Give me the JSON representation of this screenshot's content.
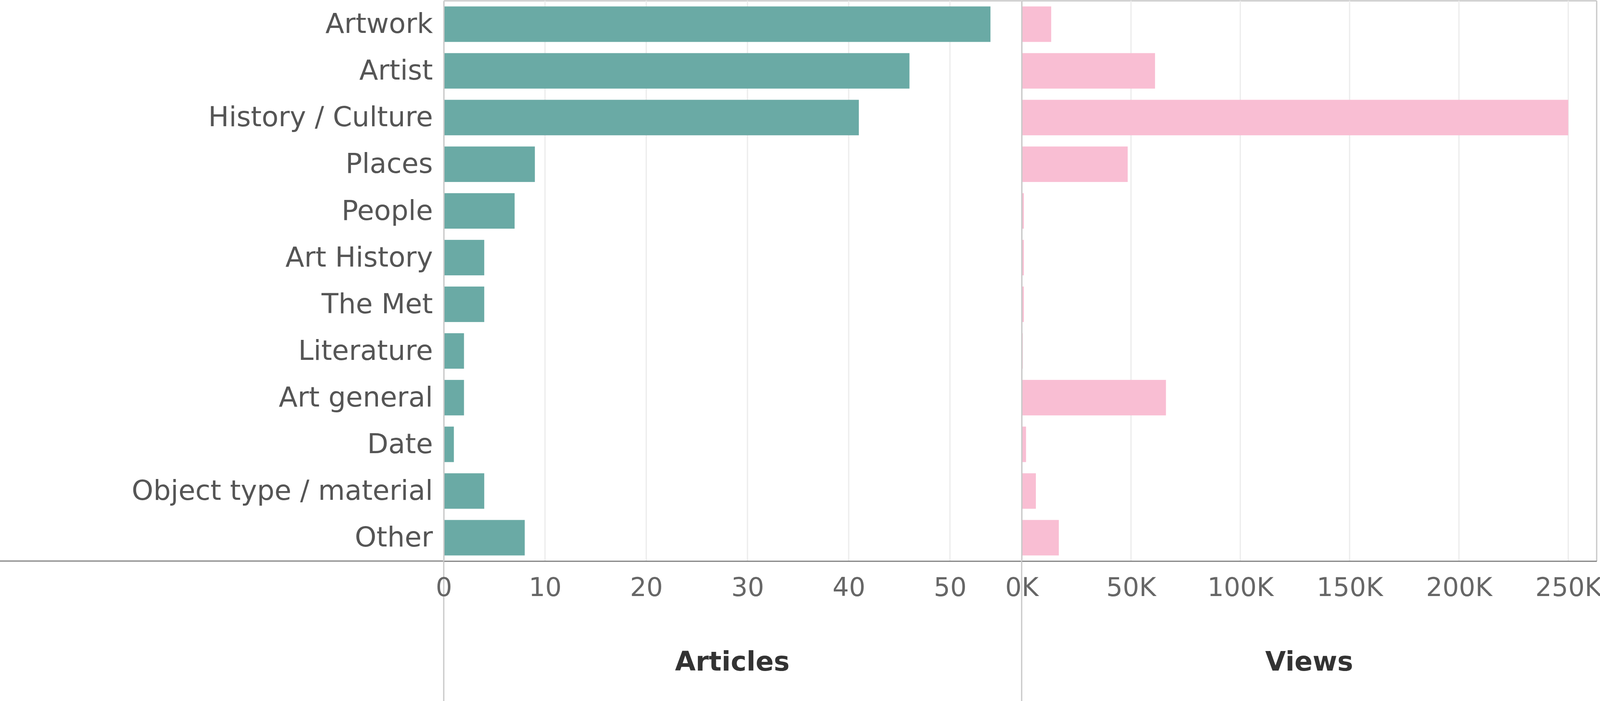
{
  "chart_data": [
    {
      "type": "bar",
      "orientation": "horizontal",
      "grid": true,
      "tick_labels": true,
      "xlabel": "Articles",
      "color": "#6aaaa5",
      "categories": [
        "Artwork",
        "Artist",
        "History / Culture",
        "Places",
        "People",
        "Art History",
        "The Met",
        "Literature",
        "Art general",
        "Date",
        "Object type / material",
        "Other"
      ],
      "values": [
        54,
        46,
        41,
        9,
        7,
        4,
        4,
        2,
        2,
        1,
        4,
        8
      ],
      "xlim": [
        0,
        57
      ],
      "xticks": [
        0,
        10,
        20,
        30,
        40,
        50
      ]
    },
    {
      "type": "bar",
      "orientation": "horizontal",
      "grid": true,
      "tick_labels": "x",
      "xlabel": "Views",
      "color": "#f9bed3",
      "categories": [
        "Artwork",
        "Artist",
        "History / Culture",
        "Places",
        "People",
        "Art History",
        "The Met",
        "Literature",
        "Art general",
        "Date",
        "Object type / material",
        "Other"
      ],
      "values": [
        13500,
        61000,
        250000,
        48500,
        1000,
        1000,
        1000,
        500,
        66000,
        2000,
        6500,
        17000
      ],
      "xlim": [
        0,
        263000
      ],
      "xticks": [
        {
          "value": 0,
          "label": "0K"
        },
        {
          "value": 50000,
          "label": "50K"
        },
        {
          "value": 100000,
          "label": "100K"
        },
        {
          "value": 150000,
          "label": "150K"
        },
        {
          "value": 200000,
          "label": "200K"
        },
        {
          "value": 250000,
          "label": "250K"
        }
      ]
    }
  ]
}
